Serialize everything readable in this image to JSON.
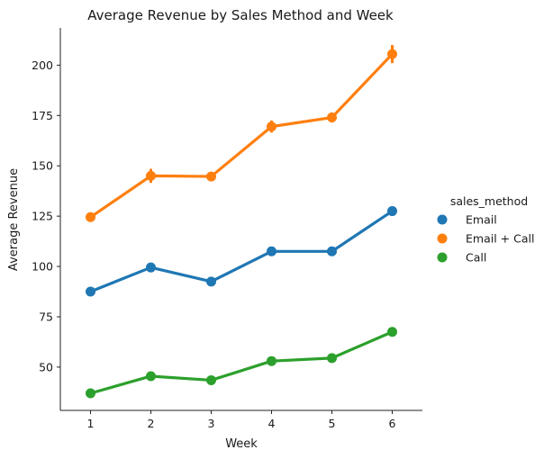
{
  "chart_data": {
    "type": "line",
    "title": "Average Revenue by Sales Method and Week",
    "xlabel": "Week",
    "ylabel": "Average Revenue",
    "x": [
      1,
      2,
      3,
      4,
      5,
      6
    ],
    "yticks": [
      50,
      75,
      100,
      125,
      150,
      175,
      200
    ],
    "xlim": [
      0.5,
      6.5
    ],
    "ylim": [
      28.5,
      218.5
    ],
    "grid": false,
    "legend": {
      "title": "sales_method",
      "placement": "right"
    },
    "series": [
      {
        "name": "Email",
        "color": "#1f77b4",
        "values": [
          87.5,
          99.5,
          92.5,
          107.5,
          107.5,
          127.5
        ],
        "err": [
          1.2,
          1.5,
          1.2,
          1.5,
          1.5,
          1.8
        ]
      },
      {
        "name": "Email + Call",
        "color": "#ff7f0e",
        "values": [
          124.5,
          145,
          144.7,
          169.5,
          174,
          205.5
        ],
        "err": [
          1.8,
          3.5,
          1.5,
          3.0,
          2.5,
          4.5
        ]
      },
      {
        "name": "Call",
        "color": "#2ca02c",
        "values": [
          37,
          45.5,
          43.5,
          53,
          54.5,
          67.5
        ],
        "err": [
          0.8,
          0.8,
          0.8,
          0.8,
          0.8,
          1.0
        ]
      }
    ]
  }
}
